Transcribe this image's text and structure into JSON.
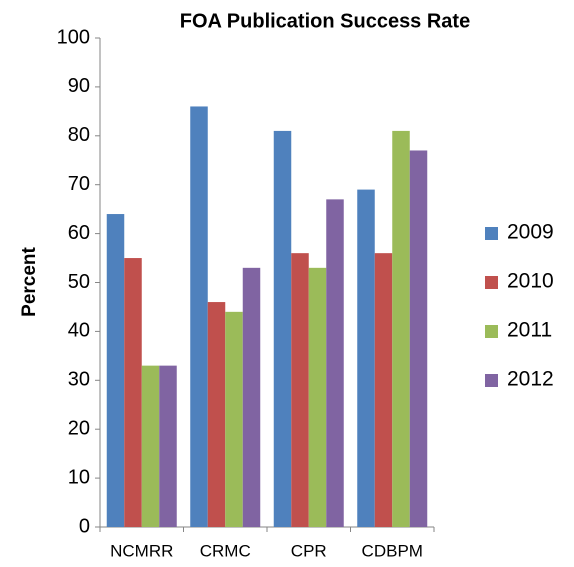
{
  "chart_data": {
    "type": "bar",
    "title": "FOA Publication Success Rate",
    "y_label": "Percent",
    "categories": [
      "NCMRR",
      "CRMC",
      "CPR",
      "CDBPM"
    ],
    "series": [
      {
        "name": "2009",
        "color": "#4f81bd",
        "values": [
          64,
          86,
          81,
          69
        ]
      },
      {
        "name": "2010",
        "color": "#c0504d",
        "values": [
          55,
          46,
          56,
          56
        ]
      },
      {
        "name": "2011",
        "color": "#9bbb59",
        "values": [
          33,
          44,
          53,
          81
        ]
      },
      {
        "name": "2012",
        "color": "#8064a2",
        "values": [
          33,
          53,
          67,
          77
        ]
      }
    ],
    "ylim": [
      0,
      100
    ],
    "yticks": [
      0,
      10,
      20,
      30,
      40,
      50,
      60,
      70,
      80,
      90,
      100
    ],
    "grid": false,
    "legend": "right"
  }
}
